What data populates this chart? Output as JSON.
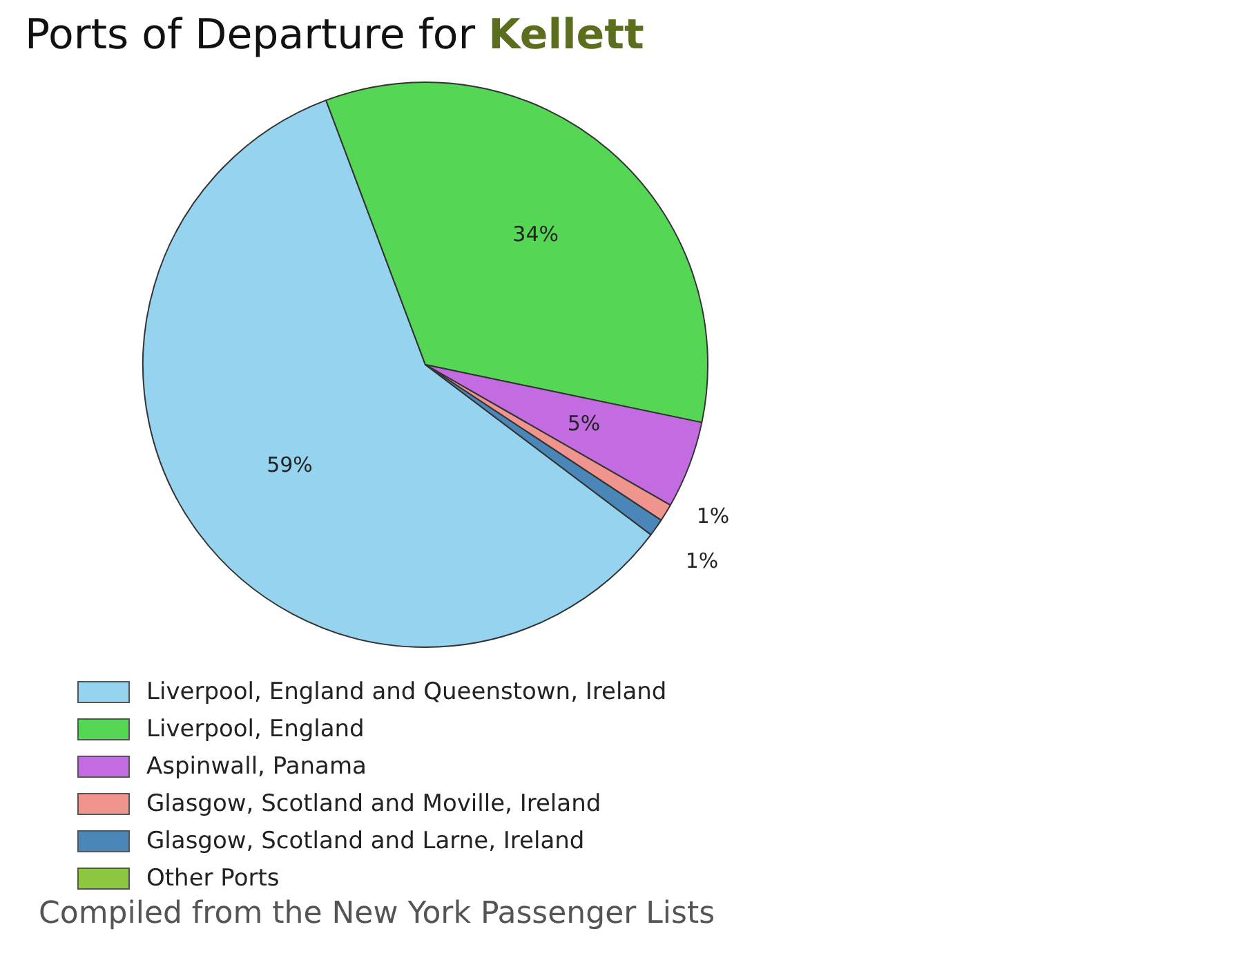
{
  "chart_data": {
    "type": "pie",
    "title": "Ports of Departure for Kellett",
    "categories": [
      "Liverpool, England and Queenstown, Ireland",
      "Liverpool, England",
      "Aspinwall, Panama",
      "Glasgow, Scotland and Moville, Ireland",
      "Glasgow, Scotland and Larne, Ireland",
      "Other Ports"
    ],
    "values": [
      59,
      34,
      5,
      1,
      1,
      0
    ],
    "colors": [
      "#96d3ee",
      "#55d655",
      "#c36be0",
      "#f0958e",
      "#4a86b8",
      "#8dc63f"
    ],
    "value_labels": [
      "59%",
      "34%",
      "5%",
      "1%",
      "1%",
      null
    ],
    "legend": "bottom",
    "annotations": [
      "Compiled from the New York Passenger Lists"
    ]
  }
}
